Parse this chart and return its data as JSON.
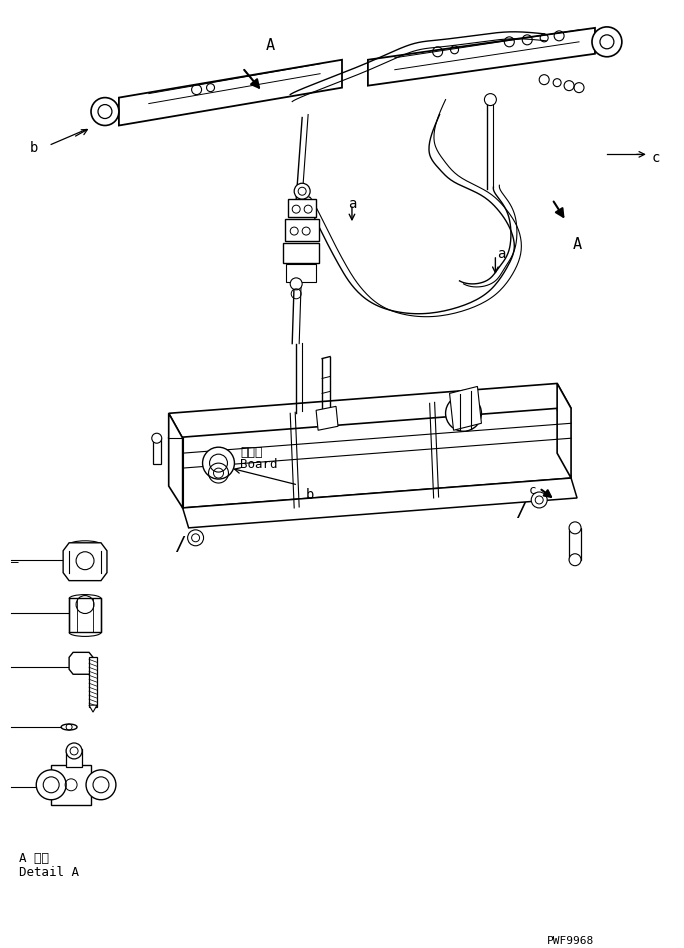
{
  "bg_color": "#ffffff",
  "line_color": "#000000",
  "fig_width": 6.84,
  "fig_height": 9.48,
  "dpi": 100,
  "part_code": "PWF9968",
  "detail_label_jp": "A 詳細",
  "detail_label_en": "Detail A",
  "board_label_jp": "ボード",
  "board_label_en": "Board",
  "label_a": "a",
  "label_b": "b",
  "label_c": "c",
  "label_A": "A"
}
